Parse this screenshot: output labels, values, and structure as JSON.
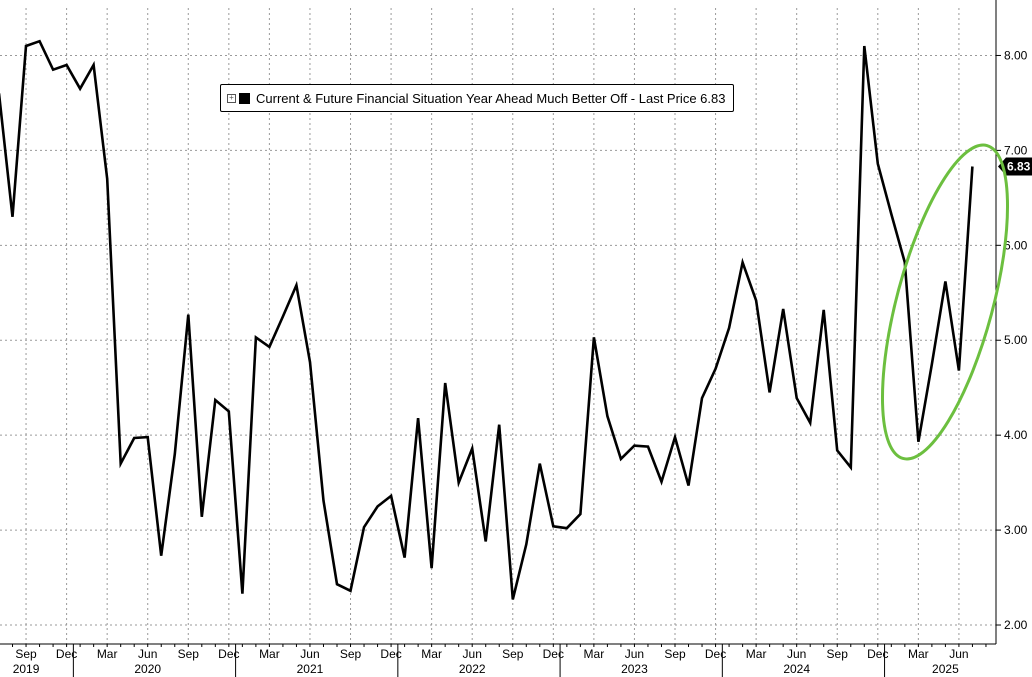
{
  "chart_data": {
    "type": "line",
    "title": "",
    "legend": {
      "label": "Current & Future Financial Situation Year Ahead Much Better Off - Last Price 6.83",
      "placement": "top-left"
    },
    "last_value_label": "6.83",
    "ylim": [
      1.8,
      8.5
    ],
    "yticks": [
      "2.00",
      "3.00",
      "4.00",
      "5.00",
      "6.00",
      "7.00",
      "8.00"
    ],
    "ytick_values": [
      2,
      3,
      4,
      5,
      6,
      7,
      8
    ],
    "grid": true,
    "x_start": "2019-07",
    "month_labels": [
      {
        "label": "Sep",
        "index": 2
      },
      {
        "label": "Dec",
        "index": 5
      },
      {
        "label": "Mar",
        "index": 8
      },
      {
        "label": "Jun",
        "index": 11
      },
      {
        "label": "Sep",
        "index": 14
      },
      {
        "label": "Dec",
        "index": 17
      },
      {
        "label": "Mar",
        "index": 20
      },
      {
        "label": "Jun",
        "index": 23
      },
      {
        "label": "Sep",
        "index": 26
      },
      {
        "label": "Dec",
        "index": 29
      },
      {
        "label": "Mar",
        "index": 32
      },
      {
        "label": "Jun",
        "index": 35
      },
      {
        "label": "Sep",
        "index": 38
      },
      {
        "label": "Dec",
        "index": 41
      },
      {
        "label": "Mar",
        "index": 44
      },
      {
        "label": "Jun",
        "index": 47
      },
      {
        "label": "Sep",
        "index": 50
      },
      {
        "label": "Dec",
        "index": 53
      },
      {
        "label": "Mar",
        "index": 56
      },
      {
        "label": "Jun",
        "index": 59
      },
      {
        "label": "Sep",
        "index": 62
      },
      {
        "label": "Dec",
        "index": 65
      },
      {
        "label": "Mar",
        "index": 68
      },
      {
        "label": "Jun",
        "index": 71
      }
    ],
    "year_labels": [
      {
        "label": "2019",
        "index": 2
      },
      {
        "label": "2020",
        "index": 11
      },
      {
        "label": "2021",
        "index": 23
      },
      {
        "label": "2022",
        "index": 35
      },
      {
        "label": "2023",
        "index": 47
      },
      {
        "label": "2024",
        "index": 59
      },
      {
        "label": "2025",
        "index": 70
      }
    ],
    "year_separators": [
      5.5,
      17.5,
      29.5,
      41.5,
      53.5,
      65.5
    ],
    "series": [
      {
        "color": "#000000",
        "values": [
          7.6,
          6.3,
          8.1,
          8.15,
          7.85,
          7.9,
          7.65,
          7.9,
          6.7,
          3.7,
          3.97,
          3.98,
          2.73,
          3.8,
          5.27,
          3.14,
          4.37,
          4.25,
          2.33,
          5.03,
          4.93,
          5.25,
          5.58,
          4.77,
          3.31,
          2.43,
          2.36,
          3.03,
          3.25,
          3.36,
          2.71,
          4.18,
          2.6,
          4.55,
          3.5,
          3.86,
          2.88,
          4.11,
          2.27,
          2.85,
          3.7,
          3.04,
          3.02,
          3.17,
          5.03,
          4.2,
          3.75,
          3.89,
          3.88,
          3.51,
          3.98,
          3.47,
          4.39,
          4.7,
          5.13,
          5.82,
          5.42,
          4.45,
          5.33,
          4.39,
          4.13,
          5.32,
          3.84,
          3.66,
          8.1,
          6.86,
          6.33,
          5.82,
          3.93,
          4.75,
          5.62,
          4.68,
          6.83
        ]
      }
    ],
    "annotation": {
      "shape": "ellipse",
      "color": "#6cbf3f"
    }
  }
}
